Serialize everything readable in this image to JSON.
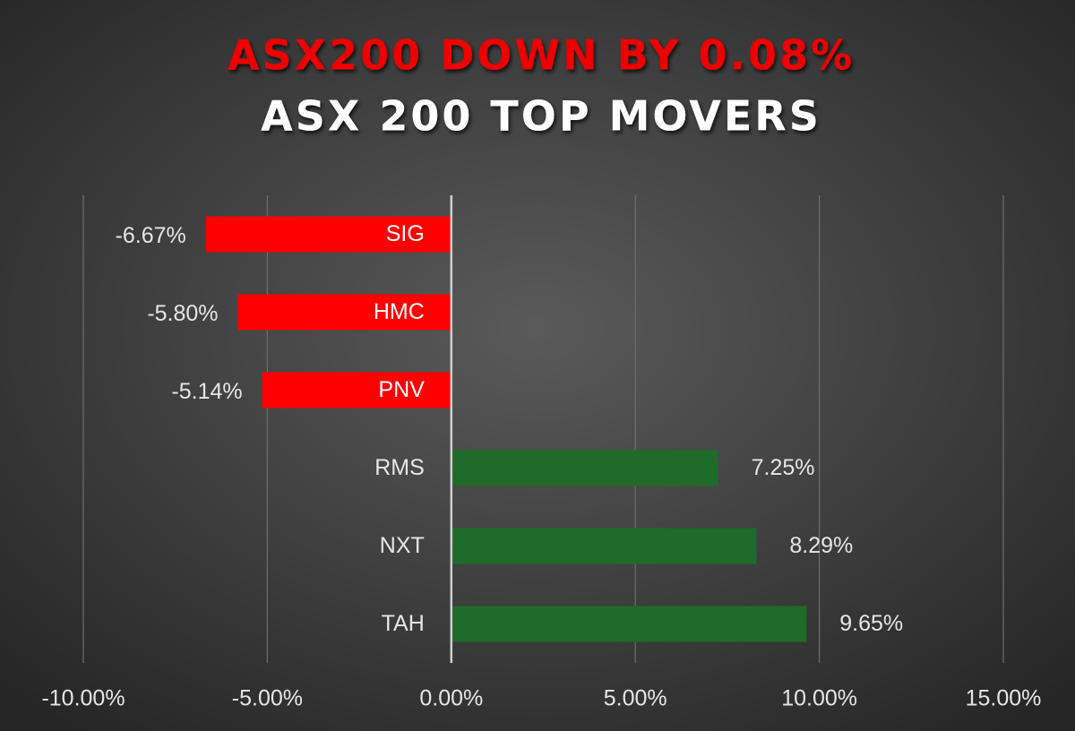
{
  "chart_data": {
    "type": "hbar",
    "title": "ASX200 DOWN BY 0.08%",
    "subtitle": "ASX 200 TOP MOVERS",
    "categories": [
      "SIG",
      "HMC",
      "PNV",
      "RMS",
      "NXT",
      "TAH"
    ],
    "values": [
      -6.67,
      -5.8,
      -5.14,
      7.25,
      8.29,
      9.65
    ],
    "value_labels": [
      "-6.67%",
      "-5.80%",
      "-5.14%",
      "7.25%",
      "8.29%",
      "9.65%"
    ],
    "colors": [
      "#ff0000",
      "#ff0000",
      "#ff0000",
      "#1e6b2a",
      "#1e6b2a",
      "#1e6b2a"
    ],
    "xlim": [
      -10,
      15
    ],
    "xticks": [
      {
        "value": -10,
        "label": "-10.00%"
      },
      {
        "value": -5,
        "label": "-5.00%"
      },
      {
        "value": 0,
        "label": "0.00%"
      },
      {
        "value": 5,
        "label": "5.00%"
      },
      {
        "value": 10,
        "label": "10.00%"
      },
      {
        "value": 15,
        "label": "15.00%"
      }
    ],
    "grid": true
  }
}
